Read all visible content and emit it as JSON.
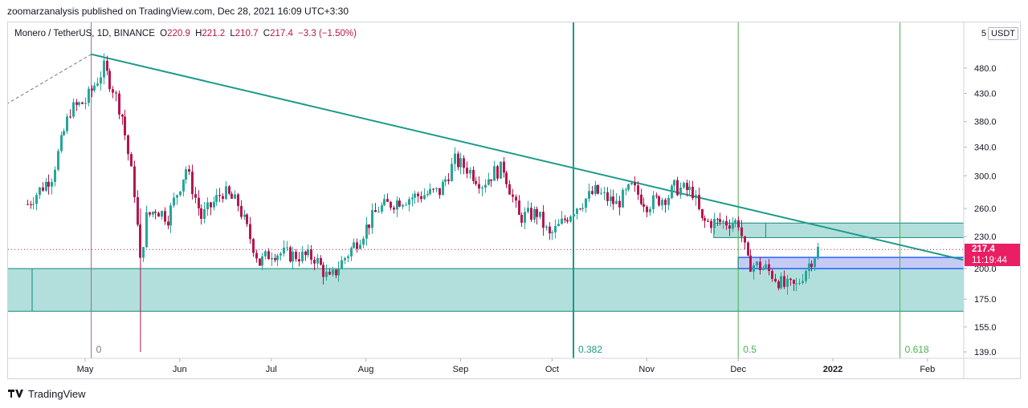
{
  "header": {
    "published": "zoomarzanalysis published on TradingView.com, Dec 28, 2021 16:09 UTC+3:30"
  },
  "legend": {
    "symbol": "Monero / TetherUS, 1D, BINANCE",
    "open_label": "O",
    "open": "220.9",
    "high_label": "H",
    "high": "221.2",
    "low_label": "L",
    "low": "210.7",
    "close_label": "C",
    "close": "217.4",
    "change": "−3.3 (−1.50%)"
  },
  "scale": {
    "label": "5",
    "currency": "USDT"
  },
  "price_tag": {
    "price": "217.4",
    "countdown": "11:19:44"
  },
  "footer": {
    "logo_text": "TradingView"
  },
  "colors": {
    "up": "#26a69a",
    "down": "#b5174e",
    "trendline": "#1a9a8a",
    "zone_fill": "#b2dfdb",
    "zone_border": "#138a7c",
    "blue_zone_fill": "#c5cbf5",
    "blue_zone_border": "#2962ff",
    "fib_green": "#4caf50",
    "price_tag": "#e91e63"
  },
  "chart_data": {
    "type": "candlestick",
    "scale": "log",
    "y_ticks": [
      "480.0",
      "430.0",
      "380.0",
      "340.0",
      "300.0",
      "260.0",
      "230.0",
      "200.0",
      "175.0",
      "155.0",
      "139.0"
    ],
    "x_ticks": [
      "May",
      "Jun",
      "Jul",
      "Aug",
      "Sep",
      "Oct",
      "Nov",
      "Dec",
      "2022",
      "Feb"
    ],
    "fib_time_zones": [
      "0",
      "0.382",
      "0.5",
      "0.618"
    ],
    "last_price": 217.4,
    "path": [
      [
        "2021-04-12",
        265
      ],
      [
        "2021-04-20",
        300
      ],
      [
        "2021-04-26",
        400
      ],
      [
        "2021-05-01",
        415
      ],
      [
        "2021-05-07",
        480
      ],
      [
        "2021-05-10",
        440
      ],
      [
        "2021-05-13",
        390
      ],
      [
        "2021-05-17",
        280
      ],
      [
        "2021-05-19",
        205
      ],
      [
        "2021-05-21",
        250
      ],
      [
        "2021-05-24",
        260
      ],
      [
        "2021-05-28",
        250
      ],
      [
        "2021-06-03",
        310
      ],
      [
        "2021-06-08",
        250
      ],
      [
        "2021-06-15",
        280
      ],
      [
        "2021-06-20",
        265
      ],
      [
        "2021-06-27",
        205
      ],
      [
        "2021-07-01",
        215
      ],
      [
        "2021-07-08",
        212
      ],
      [
        "2021-07-15",
        210
      ],
      [
        "2021-07-20",
        190
      ],
      [
        "2021-07-25",
        210
      ],
      [
        "2021-07-30",
        230
      ],
      [
        "2021-08-05",
        260
      ],
      [
        "2021-08-12",
        270
      ],
      [
        "2021-08-18",
        275
      ],
      [
        "2021-08-25",
        280
      ],
      [
        "2021-08-30",
        320
      ],
      [
        "2021-09-03",
        310
      ],
      [
        "2021-09-08",
        290
      ],
      [
        "2021-09-12",
        305
      ],
      [
        "2021-09-15",
        310
      ],
      [
        "2021-09-20",
        250
      ],
      [
        "2021-09-26",
        255
      ],
      [
        "2021-09-30",
        230
      ],
      [
        "2021-10-03",
        240
      ],
      [
        "2021-10-08",
        260
      ],
      [
        "2021-10-15",
        280
      ],
      [
        "2021-10-22",
        265
      ],
      [
        "2021-10-27",
        285
      ],
      [
        "2021-11-01",
        265
      ],
      [
        "2021-11-08",
        275
      ],
      [
        "2021-11-10",
        285
      ],
      [
        "2021-11-16",
        280
      ],
      [
        "2021-11-19",
        245
      ],
      [
        "2021-11-25",
        245
      ],
      [
        "2021-12-01",
        245
      ],
      [
        "2021-12-04",
        205
      ],
      [
        "2021-12-10",
        200
      ],
      [
        "2021-12-16",
        185
      ],
      [
        "2021-12-20",
        185
      ],
      [
        "2021-12-23",
        200
      ],
      [
        "2021-12-27",
        217.4
      ]
    ],
    "annotations": {
      "trendline": [
        [
          "2021-05-03",
          510
        ],
        [
          "2022-02-17",
          205
        ]
      ],
      "dashed_line": [
        [
          "2021-04-02",
          400
        ],
        [
          "2021-05-03",
          510
        ]
      ],
      "support_zone": {
        "from": "2021-04-02",
        "to": "2022-02-17",
        "top": 200,
        "bottom": 166
      },
      "resistance_zone": {
        "from": "2021-11-23",
        "to": "2022-02-17",
        "top": 244,
        "bottom": 229
      },
      "blue_zone": {
        "from": "2021-12-01",
        "to": "2022-02-17",
        "top": 210,
        "bottom": 200
      },
      "fib_dates": [
        "2021-05-03",
        "2021-10-08",
        "2021-12-01",
        "2022-01-23"
      ]
    }
  }
}
